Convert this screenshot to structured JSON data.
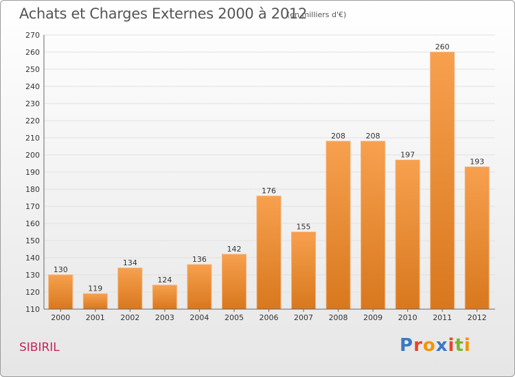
{
  "header": {
    "title": "Achats et Charges Externes 2000 à 2012",
    "subtitle": "(en milliers d'€)"
  },
  "footer": {
    "place": "SIBIRIL",
    "logo_text": "Proxiti"
  },
  "colors": {
    "bar_top": "#f7a04e",
    "bar_bottom": "#d8781e",
    "grid": "#e0e0e0",
    "place": "#c0265d"
  },
  "chart_data": {
    "type": "bar",
    "title": "Achats et Charges Externes 2000 à 2012",
    "subtitle": "(en milliers d'€)",
    "categories": [
      "2000",
      "2001",
      "2002",
      "2003",
      "2004",
      "2005",
      "2006",
      "2007",
      "2008",
      "2009",
      "2010",
      "2011",
      "2012"
    ],
    "values": [
      130,
      119,
      134,
      124,
      136,
      142,
      176,
      155,
      208,
      208,
      197,
      260,
      193
    ],
    "ylim": [
      110,
      270
    ],
    "ytick_step": 10,
    "grid": true,
    "data_labels": true,
    "xlabel": "",
    "ylabel": ""
  }
}
